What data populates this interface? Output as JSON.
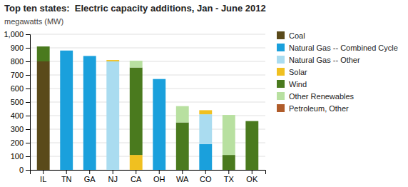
{
  "chart_data": {
    "type": "bar",
    "stacked": true,
    "title": "Top ten states:  Electric capacity additions, Jan - June 2012",
    "subtitle": "megawatts (MW)",
    "categories": [
      "IL",
      "TN",
      "GA",
      "NJ",
      "CA",
      "OH",
      "WA",
      "CO",
      "TX",
      "OK"
    ],
    "series": [
      {
        "name": "Coal",
        "color": "#5a4a1a",
        "values": [
          800,
          0,
          0,
          0,
          0,
          0,
          0,
          0,
          0,
          0
        ]
      },
      {
        "name": "Natural Gas -- Combined Cycle",
        "color": "#1aa0dc",
        "values": [
          0,
          880,
          840,
          0,
          0,
          670,
          0,
          190,
          0,
          0
        ]
      },
      {
        "name": "Natural Gas -- Other",
        "color": "#aadcf0",
        "values": [
          0,
          0,
          0,
          800,
          0,
          0,
          0,
          220,
          0,
          0
        ]
      },
      {
        "name": "Solar",
        "color": "#f0c020",
        "values": [
          0,
          0,
          0,
          10,
          110,
          0,
          0,
          30,
          0,
          0
        ]
      },
      {
        "name": "Wind",
        "color": "#4a7a1e",
        "values": [
          110,
          0,
          0,
          0,
          645,
          0,
          350,
          0,
          110,
          360
        ]
      },
      {
        "name": "Other Renewables",
        "color": "#b8e0a0",
        "values": [
          0,
          0,
          0,
          0,
          50,
          0,
          120,
          0,
          295,
          0
        ]
      },
      {
        "name": "Petroleum, Other",
        "color": "#b05c2a",
        "values": [
          0,
          0,
          0,
          0,
          0,
          0,
          0,
          0,
          0,
          0
        ]
      }
    ],
    "ylim": [
      0,
      1000
    ],
    "yticks": [
      0,
      100,
      200,
      300,
      400,
      500,
      600,
      700,
      800,
      900,
      {
        "value": 1000,
        "label": "1,000"
      }
    ],
    "grid": true,
    "legend": "right"
  }
}
